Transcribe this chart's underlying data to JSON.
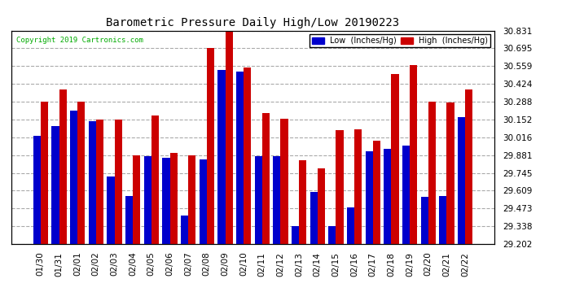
{
  "title": "Barometric Pressure Daily High/Low 20190223",
  "copyright": "Copyright 2019 Cartronics.com",
  "legend_low": "Low  (Inches/Hg)",
  "legend_high": "High  (Inches/Hg)",
  "dates": [
    "01/30",
    "01/31",
    "02/01",
    "02/02",
    "02/03",
    "02/04",
    "02/05",
    "02/06",
    "02/07",
    "02/08",
    "02/09",
    "02/10",
    "02/11",
    "02/12",
    "02/13",
    "02/14",
    "02/15",
    "02/16",
    "02/17",
    "02/18",
    "02/19",
    "02/20",
    "02/21",
    "02/22"
  ],
  "low": [
    30.03,
    30.1,
    30.22,
    30.14,
    29.72,
    29.57,
    29.87,
    29.86,
    29.42,
    29.85,
    30.53,
    30.52,
    29.87,
    29.87,
    29.34,
    29.6,
    29.34,
    29.48,
    29.91,
    29.93,
    29.95,
    29.56,
    29.57,
    30.17
  ],
  "high": [
    30.29,
    30.38,
    30.29,
    30.15,
    30.15,
    29.88,
    30.18,
    29.9,
    29.88,
    30.7,
    30.83,
    30.55,
    30.2,
    30.16,
    29.84,
    29.78,
    30.07,
    30.08,
    29.99,
    30.5,
    30.57,
    30.29,
    30.28,
    30.38
  ],
  "ylim_min": 29.202,
  "ylim_max": 30.831,
  "yticks": [
    29.202,
    29.338,
    29.473,
    29.609,
    29.745,
    29.881,
    30.016,
    30.152,
    30.288,
    30.424,
    30.559,
    30.695,
    30.831
  ],
  "low_color": "#0000cc",
  "high_color": "#cc0000",
  "bg_color": "#ffffff",
  "grid_color": "#aaaaaa",
  "title_color": "#000000",
  "bar_width": 0.4,
  "bar_bottom": 29.202
}
